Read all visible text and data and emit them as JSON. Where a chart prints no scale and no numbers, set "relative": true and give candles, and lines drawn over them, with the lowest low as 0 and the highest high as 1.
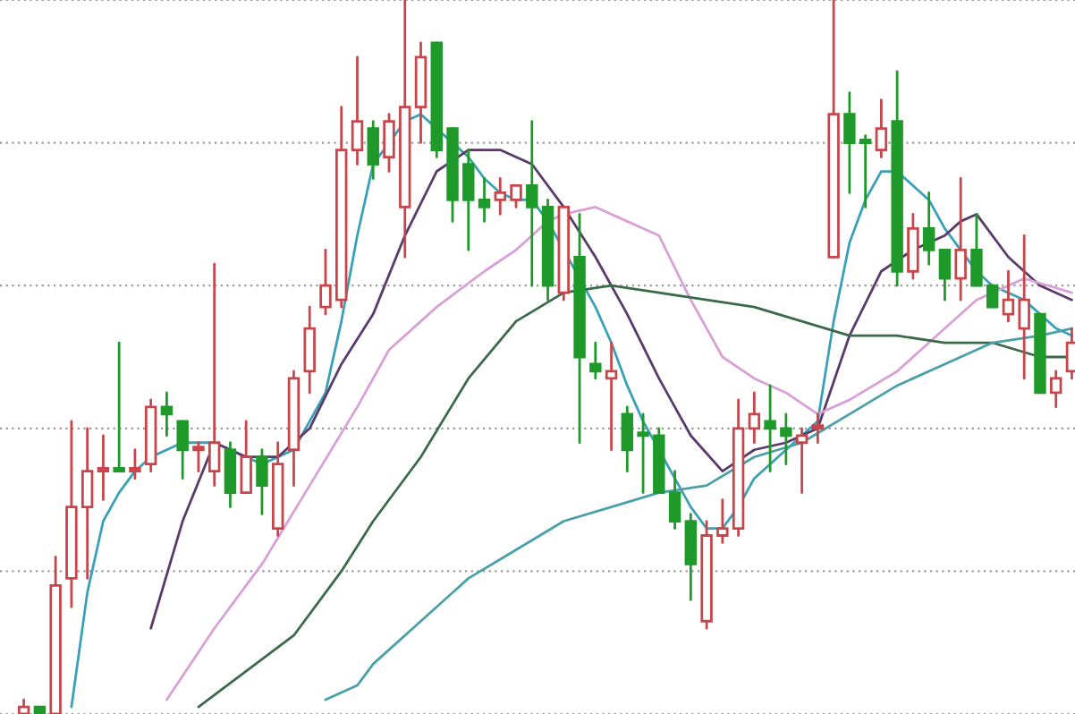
{
  "chart_data": {
    "type": "candlestick",
    "relative": true,
    "grid": "y",
    "categories": [
      null,
      null,
      null,
      null,
      null,
      null,
      null,
      null,
      null,
      null,
      null,
      null,
      null,
      null,
      null,
      null,
      null,
      null,
      null,
      null,
      null,
      null,
      null,
      null,
      null,
      null,
      null,
      null,
      null,
      null,
      null,
      null,
      null,
      null,
      null,
      null,
      null,
      null,
      null,
      null,
      null,
      null,
      null,
      null,
      null,
      null,
      null,
      null,
      null,
      null,
      null,
      null,
      null,
      null,
      null,
      null,
      null,
      null,
      null,
      null,
      null,
      null,
      null,
      null,
      null,
      null,
      null
    ],
    "ohlc": [
      [
        0.0,
        0.02,
        0.0,
        0.01
      ],
      [
        0.01,
        0.01,
        0.0,
        0.0
      ],
      [
        0.0,
        0.22,
        0.0,
        0.18
      ],
      [
        0.19,
        0.41,
        0.15,
        0.29
      ],
      [
        0.29,
        0.4,
        0.19,
        0.34
      ],
      [
        0.34,
        0.39,
        0.3,
        0.34
      ],
      [
        0.34,
        0.52,
        0.34,
        0.34
      ],
      [
        0.34,
        0.37,
        0.33,
        0.34
      ],
      [
        0.35,
        0.44,
        0.34,
        0.43
      ],
      [
        0.43,
        0.45,
        0.39,
        0.42
      ],
      [
        0.41,
        0.41,
        0.33,
        0.37
      ],
      [
        0.37,
        0.38,
        0.34,
        0.37
      ],
      [
        0.34,
        0.63,
        0.32,
        0.38
      ],
      [
        0.37,
        0.38,
        0.29,
        0.31
      ],
      [
        0.31,
        0.41,
        0.31,
        0.36
      ],
      [
        0.36,
        0.37,
        0.28,
        0.32
      ],
      [
        0.26,
        0.38,
        0.25,
        0.35
      ],
      [
        0.37,
        0.48,
        0.32,
        0.47
      ],
      [
        0.48,
        0.57,
        0.45,
        0.54
      ],
      [
        0.57,
        0.65,
        0.56,
        0.6
      ],
      [
        0.58,
        0.85,
        0.57,
        0.79
      ],
      [
        0.79,
        0.92,
        0.77,
        0.83
      ],
      [
        0.82,
        0.83,
        0.75,
        0.77
      ],
      [
        0.78,
        0.84,
        0.76,
        0.83
      ],
      [
        0.71,
        1.0,
        0.64,
        0.85
      ],
      [
        0.85,
        0.94,
        0.8,
        0.92
      ],
      [
        0.94,
        0.94,
        0.78,
        0.79
      ],
      [
        0.82,
        0.82,
        0.69,
        0.72
      ],
      [
        0.77,
        0.79,
        0.65,
        0.72
      ],
      [
        0.72,
        0.75,
        0.69,
        0.71
      ],
      [
        0.72,
        0.75,
        0.7,
        0.73
      ],
      [
        0.72,
        0.74,
        0.71,
        0.74
      ],
      [
        0.74,
        0.83,
        0.6,
        0.71
      ],
      [
        0.71,
        0.72,
        0.58,
        0.6
      ],
      [
        0.59,
        0.71,
        0.58,
        0.71
      ],
      [
        0.64,
        0.7,
        0.38,
        0.5
      ],
      [
        0.49,
        0.52,
        0.47,
        0.48
      ],
      [
        0.47,
        0.52,
        0.37,
        0.48
      ],
      [
        0.42,
        0.43,
        0.34,
        0.37
      ],
      [
        0.39,
        0.42,
        0.31,
        0.39
      ],
      [
        0.39,
        0.4,
        0.31,
        0.31
      ],
      [
        0.31,
        0.34,
        0.26,
        0.27
      ],
      [
        0.27,
        0.28,
        0.16,
        0.21
      ],
      [
        0.13,
        0.27,
        0.12,
        0.25
      ],
      [
        0.25,
        0.3,
        0.24,
        0.26
      ],
      [
        0.26,
        0.44,
        0.25,
        0.4
      ],
      [
        0.4,
        0.45,
        0.38,
        0.42
      ],
      [
        0.41,
        0.46,
        0.34,
        0.4
      ],
      [
        0.4,
        0.42,
        0.35,
        0.39
      ],
      [
        0.38,
        0.4,
        0.31,
        0.39
      ],
      [
        0.4,
        0.42,
        0.38,
        0.4
      ],
      [
        0.64,
        1.0,
        0.64,
        0.84
      ],
      [
        0.84,
        0.87,
        0.73,
        0.8
      ],
      [
        0.8,
        0.81,
        0.71,
        0.8
      ],
      [
        0.79,
        0.86,
        0.78,
        0.82
      ],
      [
        0.83,
        0.9,
        0.6,
        0.62
      ],
      [
        0.62,
        0.7,
        0.61,
        0.68
      ],
      [
        0.68,
        0.73,
        0.63,
        0.65
      ],
      [
        0.65,
        0.65,
        0.58,
        0.61
      ],
      [
        0.61,
        0.75,
        0.58,
        0.65
      ],
      [
        0.65,
        0.7,
        0.6,
        0.6
      ],
      [
        0.6,
        0.6,
        0.57,
        0.57
      ],
      [
        0.56,
        0.62,
        0.55,
        0.58
      ],
      [
        0.54,
        0.67,
        0.47,
        0.58
      ],
      [
        0.56,
        0.56,
        0.45,
        0.45
      ],
      [
        0.45,
        0.48,
        0.43,
        0.47
      ],
      [
        0.48,
        0.54,
        0.47,
        0.52
      ]
    ],
    "colors": [
      "#c8464b",
      "#1f9a2a",
      "#c8464b",
      "#c8464b",
      "#c8464b",
      "#c8464b",
      "#1f9a2a",
      "#c8464b",
      "#c8464b",
      "#1f9a2a",
      "#1f9a2a",
      "#c8464b",
      "#c8464b",
      "#1f9a2a",
      "#c8464b",
      "#1f9a2a",
      "#c8464b",
      "#c8464b",
      "#c8464b",
      "#c8464b",
      "#c8464b",
      "#c8464b",
      "#1f9a2a",
      "#c8464b",
      "#c8464b",
      "#c8464b",
      "#1f9a2a",
      "#1f9a2a",
      "#1f9a2a",
      "#1f9a2a",
      "#c8464b",
      "#c8464b",
      "#1f9a2a",
      "#1f9a2a",
      "#c8464b",
      "#1f9a2a",
      "#1f9a2a",
      "#c8464b",
      "#1f9a2a",
      "#1f9a2a",
      "#1f9a2a",
      "#1f9a2a",
      "#1f9a2a",
      "#c8464b",
      "#c8464b",
      "#c8464b",
      "#c8464b",
      "#1f9a2a",
      "#1f9a2a",
      "#c8464b",
      "#c8464b",
      "#c8464b",
      "#1f9a2a",
      "#1f9a2a",
      "#c8464b",
      "#1f9a2a",
      "#c8464b",
      "#1f9a2a",
      "#1f9a2a",
      "#c8464b",
      "#1f9a2a",
      "#1f9a2a",
      "#c8464b",
      "#c8464b",
      "#1f9a2a",
      "#c8464b",
      "#c8464b"
    ],
    "series": [
      {
        "type": "line",
        "color": "#3aa0b8",
        "values": [
          null,
          null,
          null,
          0.01,
          0.17,
          0.27,
          0.31,
          0.34,
          0.36,
          0.37,
          0.38,
          0.38,
          0.38,
          null,
          0.36,
          0.35,
          0.36,
          0.37,
          0.41,
          0.45,
          0.55,
          0.67,
          0.77,
          0.8,
          0.83,
          0.84,
          0.82,
          0.8,
          0.78,
          0.75,
          0.73,
          0.72,
          0.72,
          0.69,
          null,
          null,
          0.57,
          0.52,
          0.46,
          0.41,
          null,
          0.33,
          0.29,
          0.26,
          0.26,
          0.29,
          0.33,
          0.35,
          0.37,
          0.39,
          0.41,
          0.55,
          0.66,
          0.72,
          0.76,
          0.76,
          0.74,
          0.72,
          0.68,
          0.65,
          0.62,
          0.6,
          0.59,
          0.58,
          0.56,
          0.54,
          0.53
        ]
      },
      {
        "type": "line",
        "color": "#5a3a6a",
        "values": [
          null,
          null,
          null,
          null,
          null,
          null,
          null,
          null,
          0.12,
          null,
          0.27,
          null,
          0.38,
          null,
          0.36,
          null,
          0.36,
          null,
          0.4,
          null,
          0.49,
          null,
          0.56,
          null,
          0.67,
          null,
          0.76,
          null,
          0.79,
          null,
          0.79,
          null,
          0.77,
          null,
          0.71,
          null,
          0.64,
          null,
          0.56,
          null,
          0.47,
          null,
          0.39,
          null,
          0.34,
          null,
          0.37,
          null,
          0.38,
          null,
          0.4,
          null,
          0.53,
          null,
          0.62,
          null,
          0.65,
          null,
          0.67,
          0.69,
          0.7,
          null,
          0.64,
          null,
          0.6,
          null,
          0.58
        ]
      },
      {
        "type": "line",
        "color": "#d9a0d8",
        "values": [
          null,
          null,
          null,
          null,
          null,
          null,
          null,
          null,
          null,
          0.02,
          null,
          null,
          0.12,
          null,
          null,
          0.21,
          null,
          null,
          0.32,
          null,
          null,
          0.43,
          null,
          0.51,
          null,
          null,
          0.57,
          null,
          null,
          0.62,
          null,
          0.65,
          null,
          0.69,
          0.7,
          null,
          0.71,
          null,
          0.69,
          null,
          0.67,
          null,
          0.58,
          null,
          0.5,
          null,
          0.47,
          null,
          0.45,
          null,
          0.42,
          null,
          0.44,
          null,
          null,
          0.48,
          null,
          null,
          0.54,
          null,
          0.58,
          null,
          null,
          0.61,
          null,
          null,
          0.59
        ]
      },
      {
        "type": "line",
        "color": "#3a6a4a",
        "values": [
          null,
          null,
          null,
          null,
          null,
          null,
          null,
          null,
          null,
          null,
          null,
          0.01,
          null,
          null,
          0.06,
          null,
          null,
          0.11,
          null,
          null,
          0.2,
          null,
          0.27,
          null,
          null,
          0.36,
          null,
          null,
          0.47,
          null,
          null,
          0.55,
          null,
          null,
          0.59,
          null,
          null,
          0.6,
          null,
          null,
          0.59,
          null,
          null,
          0.58,
          null,
          null,
          0.57,
          null,
          null,
          0.55,
          null,
          null,
          0.53,
          null,
          null,
          0.53,
          null,
          null,
          0.52,
          null,
          null,
          0.52,
          null,
          null,
          0.5,
          null,
          0.5
        ]
      },
      {
        "type": "line",
        "color": "#4aa0a8",
        "values": [
          null,
          null,
          null,
          null,
          null,
          null,
          null,
          null,
          null,
          null,
          null,
          null,
          null,
          null,
          null,
          null,
          null,
          null,
          null,
          0.02,
          null,
          0.04,
          0.07,
          null,
          null,
          0.13,
          null,
          null,
          0.19,
          null,
          null,
          0.23,
          null,
          null,
          0.27,
          null,
          null,
          0.29,
          null,
          null,
          0.31,
          null,
          null,
          0.32,
          null,
          null,
          0.36,
          null,
          null,
          0.38,
          null,
          null,
          0.42,
          null,
          null,
          0.46,
          null,
          null,
          0.49,
          null,
          null,
          0.52,
          null,
          null,
          0.53,
          null,
          0.54
        ]
      }
    ]
  }
}
